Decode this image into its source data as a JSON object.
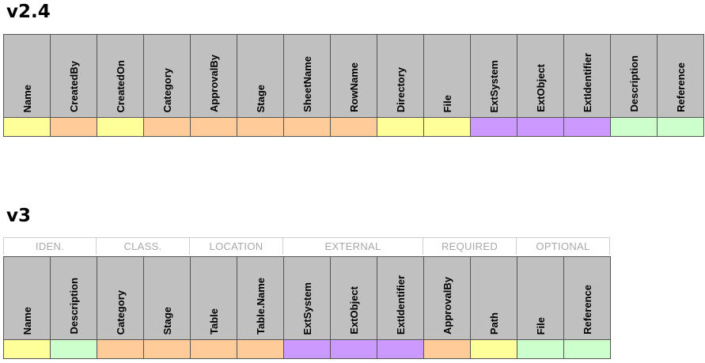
{
  "sections": {
    "v2": {
      "title": "v2.4",
      "columns": [
        {
          "label": "Name",
          "color": "#ffff99"
        },
        {
          "label": "CreatedBy",
          "color": "#ffcc99"
        },
        {
          "label": "CreatedOn",
          "color": "#ffff99"
        },
        {
          "label": "Category",
          "color": "#ffcc99"
        },
        {
          "label": "ApprovalBy",
          "color": "#ffcc99"
        },
        {
          "label": "Stage",
          "color": "#ffcc99"
        },
        {
          "label": "SheetName",
          "color": "#ffcc99"
        },
        {
          "label": "RowName",
          "color": "#ffcc99"
        },
        {
          "label": "Directory",
          "color": "#ffff99"
        },
        {
          "label": "File",
          "color": "#ffff99"
        },
        {
          "label": "ExtSystem",
          "color": "#cc99ff"
        },
        {
          "label": "ExtObject",
          "color": "#cc99ff"
        },
        {
          "label": "ExtIdentifier",
          "color": "#cc99ff"
        },
        {
          "label": "Description",
          "color": "#ccffcc"
        },
        {
          "label": "Reference",
          "color": "#ccffcc"
        }
      ]
    },
    "v3": {
      "title": "v3",
      "groups": [
        {
          "label": "IDEN.",
          "span": 2
        },
        {
          "label": "CLASS.",
          "span": 2
        },
        {
          "label": "LOCATION",
          "span": 2
        },
        {
          "label": "EXTERNAL",
          "span": 3
        },
        {
          "label": "REQUIRED",
          "span": 2
        },
        {
          "label": "OPTIONAL",
          "span": 2
        }
      ],
      "columns": [
        {
          "label": "Name",
          "color": "#ffff99"
        },
        {
          "label": "Description",
          "color": "#ccffcc"
        },
        {
          "label": "Category",
          "color": "#ffcc99"
        },
        {
          "label": "Stage",
          "color": "#ffcc99"
        },
        {
          "label": "Table",
          "color": "#ffcc99"
        },
        {
          "label": "Table.Name",
          "color": "#ffcc99"
        },
        {
          "label": "ExtSystem",
          "color": "#cc99ff"
        },
        {
          "label": "ExtObject",
          "color": "#cc99ff"
        },
        {
          "label": "ExtIdentifier",
          "color": "#cc99ff"
        },
        {
          "label": "ApprovalBy",
          "color": "#ffcc99"
        },
        {
          "label": "Path",
          "color": "#ffff99"
        },
        {
          "label": "File",
          "color": "#ccffcc"
        },
        {
          "label": "Reference",
          "color": "#ccffcc"
        }
      ]
    }
  }
}
